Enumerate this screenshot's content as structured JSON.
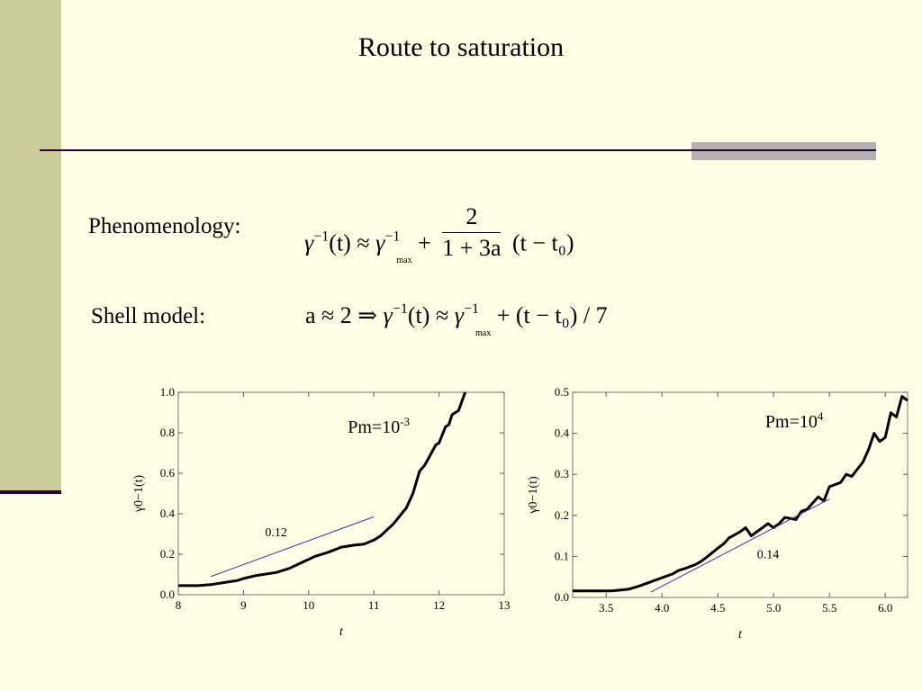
{
  "slide": {
    "title": "Route to saturation",
    "phenomenology_label": "Phenomenology:",
    "shell_label": "Shell model:",
    "eq1": {
      "gamma": "γ",
      "inv": "−1",
      "t_arg": "(t)",
      "approx": "≈",
      "max": "max",
      "plus": "+",
      "num": "2",
      "den": "1 + 3a",
      "tail": "(t − t₀)"
    },
    "eq2": {
      "lhs": "a ≈ 2  ⇒",
      "gamma": "γ",
      "inv": "−1",
      "t_arg": "(t)",
      "approx": "≈",
      "max": "max",
      "tail": "+ (t − t₀) / 7"
    },
    "colors": {
      "background": "#FFFFE6",
      "sidebar": "#CCCC99",
      "rule": "#330033",
      "rule_block": "#B2B2B2",
      "fit_line": "#3333AA"
    }
  },
  "chart_data": [
    {
      "type": "line",
      "annotation": "Pm=10",
      "annotation_exp": "-3",
      "xlabel": "t",
      "ylabel": "γ0−1(t)",
      "xlim": [
        8,
        13
      ],
      "ylim": [
        0,
        1.0
      ],
      "xticks": [
        8,
        9,
        10,
        11,
        12,
        13
      ],
      "yticks": [
        0.0,
        0.2,
        0.4,
        0.6,
        0.8,
        1.0
      ],
      "xtick_labels": [
        "8",
        "9",
        "10",
        "11",
        "12",
        "13"
      ],
      "ytick_labels": [
        "0.0",
        "0.2",
        "0.4",
        "0.6",
        "0.8",
        "1.0"
      ],
      "series": [
        {
          "x": [
            8.0,
            8.3,
            8.5,
            8.7,
            8.9,
            9.0,
            9.2,
            9.5,
            9.7,
            9.9,
            10.1,
            10.3,
            10.5,
            10.7,
            10.85,
            11.0,
            11.1,
            11.3,
            11.5,
            11.6,
            11.7,
            11.78,
            11.85,
            11.95,
            12.0,
            12.1,
            12.15,
            12.2,
            12.3,
            12.4
          ],
          "y": [
            0.045,
            0.045,
            0.05,
            0.06,
            0.07,
            0.08,
            0.095,
            0.11,
            0.13,
            0.16,
            0.19,
            0.21,
            0.235,
            0.245,
            0.25,
            0.27,
            0.29,
            0.35,
            0.43,
            0.5,
            0.61,
            0.64,
            0.68,
            0.74,
            0.75,
            0.83,
            0.84,
            0.89,
            0.91,
            1.0
          ]
        }
      ],
      "fit_line": {
        "x": [
          8.5,
          11.0
        ],
        "y": [
          0.09,
          0.385
        ],
        "label": "0.12",
        "label_x": 9.5,
        "label_y": 0.29
      }
    },
    {
      "type": "line",
      "annotation": "Pm=10",
      "annotation_exp": "4",
      "xlabel": "t",
      "ylabel": "γ0−1(t)",
      "xlim": [
        3.2,
        6.2
      ],
      "ylim": [
        0,
        0.5
      ],
      "xticks": [
        3.5,
        4.0,
        4.5,
        5.0,
        5.5,
        6.0
      ],
      "yticks": [
        0.0,
        0.1,
        0.2,
        0.3,
        0.4,
        0.5
      ],
      "xtick_labels": [
        "3.5",
        "4.0",
        "4.5",
        "5.0",
        "5.5",
        "6.0"
      ],
      "ytick_labels": [
        "0.0",
        "0.1",
        "0.2",
        "0.3",
        "0.4",
        "0.5"
      ],
      "series": [
        {
          "x": [
            3.2,
            3.4,
            3.55,
            3.7,
            3.8,
            3.9,
            4.0,
            4.1,
            4.15,
            4.2,
            4.3,
            4.35,
            4.4,
            4.5,
            4.55,
            4.6,
            4.7,
            4.75,
            4.8,
            4.9,
            4.95,
            5.0,
            5.05,
            5.1,
            5.2,
            5.25,
            5.3,
            5.4,
            5.45,
            5.5,
            5.6,
            5.65,
            5.7,
            5.8,
            5.85,
            5.9,
            5.95,
            6.0,
            6.05,
            6.1,
            6.15,
            6.2
          ],
          "y": [
            0.016,
            0.016,
            0.016,
            0.02,
            0.028,
            0.038,
            0.048,
            0.058,
            0.066,
            0.07,
            0.08,
            0.088,
            0.098,
            0.12,
            0.13,
            0.145,
            0.16,
            0.17,
            0.15,
            0.17,
            0.18,
            0.17,
            0.18,
            0.195,
            0.19,
            0.21,
            0.215,
            0.245,
            0.235,
            0.27,
            0.28,
            0.3,
            0.295,
            0.33,
            0.36,
            0.4,
            0.38,
            0.39,
            0.45,
            0.44,
            0.49,
            0.48
          ]
        }
      ],
      "fit_line": {
        "x": [
          3.9,
          5.5
        ],
        "y": [
          0.013,
          0.24
        ],
        "label": "0.14",
        "label_x": 4.95,
        "label_y": 0.095
      }
    }
  ]
}
